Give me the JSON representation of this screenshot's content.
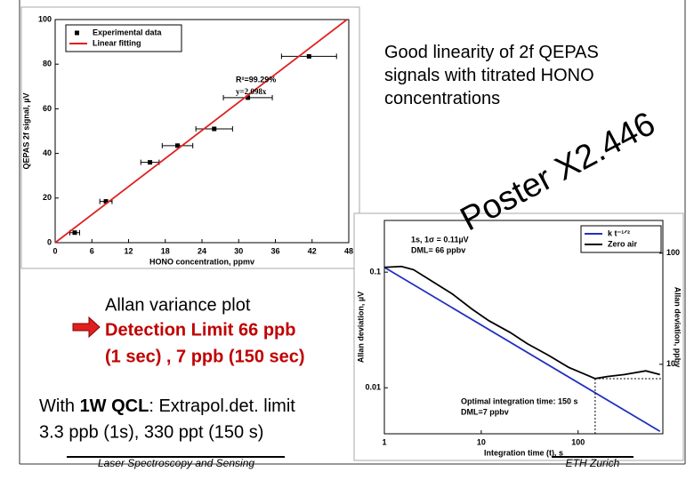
{
  "slide": {
    "headline": "Good linearity of 2f QEPAS signals with titrated HONO concentrations",
    "poster": "Poster X2.446",
    "allan_title": "Allan variance plot",
    "allan_limit": "Detection Limit 66 ppb",
    "allan_times": "(1 sec) , 7 ppb (150 sec)",
    "qcl_intro": "With ",
    "qcl_bold": "1W QCL",
    "qcl_rest": ": Extrapol.det. limit",
    "qcl_values": "3.3 ppb (1s), 330 ppt (150 s)",
    "footer_left": "Laser Spectroscopy and Sensing",
    "footer_right": "ETH Zurich"
  },
  "chart_data": [
    {
      "type": "scatter",
      "x_label": "HONO concentration, ppmv",
      "y_label": "QEPAS 2f signal, µV",
      "xlim": [
        0,
        48
      ],
      "ylim": [
        0,
        100
      ],
      "xticks": [
        0,
        6,
        12,
        18,
        24,
        30,
        36,
        42,
        48
      ],
      "yticks": [
        0,
        20,
        40,
        60,
        80,
        100
      ],
      "grid": false,
      "legend": "upper left",
      "series": [
        {
          "name": "Experimental data",
          "type": "scatter",
          "color": "#000000",
          "x": [
            3.2,
            8.3,
            15.5,
            20,
            26,
            31.5,
            41.5
          ],
          "values": [
            4.5,
            18.5,
            36,
            43.5,
            51,
            65,
            83.5
          ],
          "x_errors": [
            0.8,
            1,
            1.5,
            2.5,
            3,
            4,
            4.5
          ]
        },
        {
          "name": "Linear fitting",
          "type": "line",
          "color": "#e02020",
          "x": [
            0,
            47.7
          ],
          "values": [
            0,
            100
          ]
        }
      ],
      "annotations": [
        "R²=99.29%",
        "y=2.098x"
      ]
    },
    {
      "type": "line",
      "x_label": "Integration time (t), s",
      "y_label": "Allan deviation, µV",
      "y2_label": "Allan deviation, ppbv",
      "x_log": true,
      "y_log": true,
      "y2_log": true,
      "xlim": [
        1,
        750
      ],
      "ylim": [
        0.004,
        0.28
      ],
      "y2lim": [
        2.37,
        197
      ],
      "xticks": [
        1,
        10,
        100
      ],
      "yticks": [
        0.01,
        0.1
      ],
      "y2ticks": [
        10,
        100
      ],
      "grid": false,
      "legend": "upper right",
      "series": [
        {
          "name": "k t⁻¹ᐟ²",
          "type": "line",
          "color": "#2030c0",
          "x": [
            1,
            700
          ],
          "values": [
            0.11,
            0.0042
          ]
        },
        {
          "name": "Zero air",
          "type": "line",
          "color": "#000000",
          "x": [
            1,
            1.5,
            2,
            3,
            5,
            8,
            12,
            20,
            30,
            50,
            80,
            120,
            150,
            200,
            300,
            500,
            700
          ],
          "values": [
            0.11,
            0.112,
            0.105,
            0.085,
            0.065,
            0.048,
            0.038,
            0.03,
            0.024,
            0.019,
            0.015,
            0.013,
            0.012,
            0.0125,
            0.013,
            0.014,
            0.013
          ]
        }
      ],
      "annotations": [
        "1s, 1σ = 0.11µV",
        "DML= 66 ppbv",
        "Optimal integration time: 150 s",
        "DML=7 ppbv"
      ]
    }
  ]
}
